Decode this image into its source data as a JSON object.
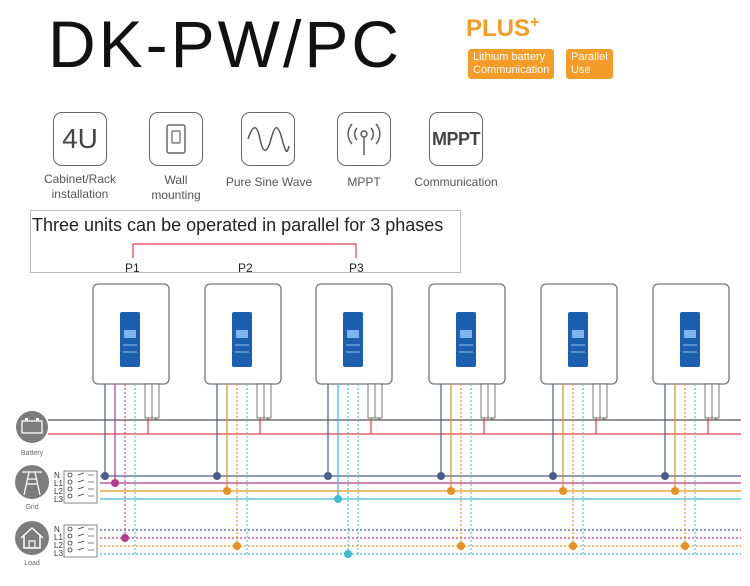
{
  "header": {
    "title": "DK-PW/PC",
    "plus": "PLUS",
    "plus_mark": "+",
    "tag_lithium": [
      "Lithium battery",
      "Communication"
    ],
    "tag_parallel": [
      "Parallel",
      "Use"
    ]
  },
  "features": [
    {
      "icon": "rack-4u-icon",
      "icon_text": "4U",
      "label": [
        "Cabinet/Rack",
        "installation"
      ]
    },
    {
      "icon": "wall-mount-icon",
      "icon_text": "",
      "label": [
        "Wall",
        "mounting"
      ]
    },
    {
      "icon": "sine-wave-icon",
      "icon_text": "",
      "label": [
        "Pure Sine Wave"
      ]
    },
    {
      "icon": "mppt-signal-icon",
      "icon_text": "",
      "label": [
        "MPPT"
      ]
    },
    {
      "icon": "communication-icon",
      "icon_text": "MPPT",
      "label": [
        "Communication"
      ]
    }
  ],
  "parallel": {
    "title": "Three units can be operated in parallel for 3 phases",
    "phases": [
      "P1",
      "P2",
      "P3"
    ]
  },
  "left_labels": {
    "battery": "Battery",
    "grid": "Grid",
    "load": "Load",
    "lines": [
      "N",
      "L1",
      "L2",
      "L3"
    ]
  },
  "colors": {
    "accent": "#f39c28",
    "neutral": "#4a5f8c",
    "l1": "#b43c8c",
    "l2": "#e8901e",
    "l3": "#3cbed0",
    "battery_pos": "#e0404a",
    "battery_neg": "#555555",
    "display": "#1c5fb0"
  }
}
